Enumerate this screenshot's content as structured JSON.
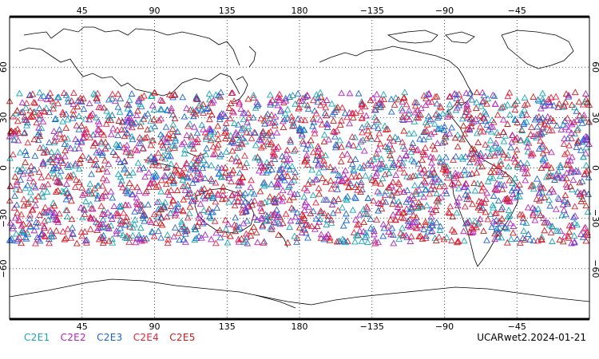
{
  "map": {
    "projection": "cylindrical-equidistant",
    "center_longitude": 180,
    "lat_range": [
      -90,
      90
    ],
    "lon_ticks_top": [
      "45",
      "90",
      "135",
      "180",
      "−135",
      "−90",
      "−45"
    ],
    "lon_ticks_bottom": [
      "45",
      "90",
      "135",
      "180",
      "−135",
      "−90",
      "−45"
    ],
    "lat_ticks_left": [
      "60",
      "30",
      "0",
      "−30",
      "−60"
    ],
    "lat_ticks_right": [
      "60",
      "30",
      "0",
      "−30",
      "−60"
    ],
    "grid": "dotted",
    "observation_lat_band": [
      -45,
      45
    ]
  },
  "legend": {
    "items": [
      {
        "label": "C2E1",
        "color": "#17a6b8"
      },
      {
        "label": "C2E2",
        "color": "#b223c4"
      },
      {
        "label": "C2E3",
        "color": "#1e63d6"
      },
      {
        "label": "C2E4",
        "color": "#e3233b"
      },
      {
        "label": "C2E5",
        "color": "#d11a1a"
      }
    ]
  },
  "footer": {
    "tag": "UCARwet2.2024-01-21"
  },
  "marker": {
    "shape": "hollow-triangle"
  }
}
